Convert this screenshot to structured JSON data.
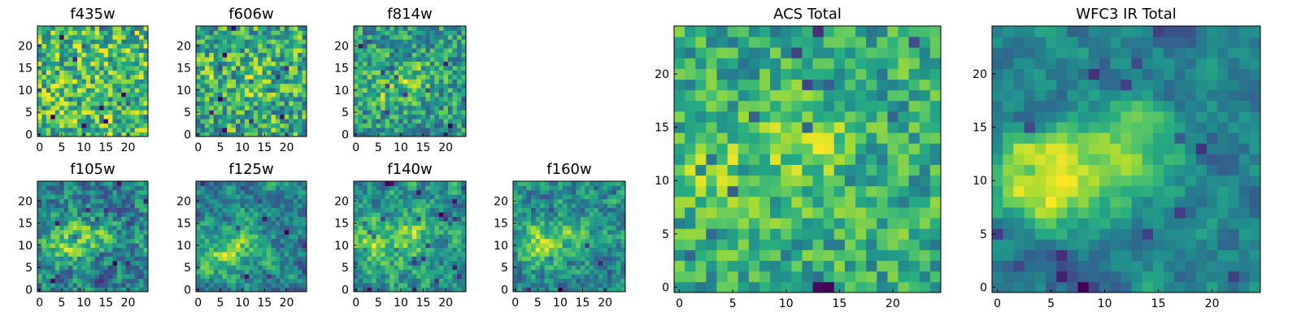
{
  "chart_data": [
    {
      "type": "heatmap",
      "title": "f435w",
      "colormap": "viridis",
      "n": 25,
      "xticks": [
        "0",
        "5",
        "10",
        "15",
        "20"
      ],
      "yticks": [
        "0",
        "5",
        "10",
        "15",
        "20"
      ],
      "hotspots": [],
      "base": 0.65,
      "noise": 0.42,
      "seed": 11,
      "smooth": 0.0
    },
    {
      "type": "heatmap",
      "title": "f606w",
      "colormap": "viridis",
      "n": 25,
      "xticks": [
        "0",
        "5",
        "10",
        "15",
        "20"
      ],
      "yticks": [
        "0",
        "5",
        "10",
        "15",
        "20"
      ],
      "hotspots": [
        [
          6,
          12,
          0.12
        ],
        [
          13,
          12,
          0.1
        ]
      ],
      "base": 0.62,
      "noise": 0.42,
      "seed": 23,
      "smooth": 0.1
    },
    {
      "type": "heatmap",
      "title": "f814w",
      "colormap": "viridis",
      "n": 25,
      "xticks": [
        "0",
        "5",
        "10",
        "15",
        "20"
      ],
      "yticks": [
        "0",
        "5",
        "10",
        "15",
        "20"
      ],
      "hotspots": [
        [
          5,
          10,
          0.28
        ],
        [
          13,
          12,
          0.3
        ]
      ],
      "base": 0.55,
      "noise": 0.4,
      "seed": 37,
      "smooth": 0.2
    },
    {
      "type": "heatmap",
      "title": "f105w",
      "colormap": "viridis",
      "n": 25,
      "xticks": [
        "0",
        "5",
        "10",
        "15",
        "20"
      ],
      "yticks": [
        "0",
        "5",
        "10",
        "15",
        "20"
      ],
      "hotspots": [
        [
          5,
          10,
          0.3
        ],
        [
          12,
          12,
          0.25
        ]
      ],
      "base": 0.55,
      "noise": 0.35,
      "seed": 41,
      "smooth": 0.45
    },
    {
      "type": "heatmap",
      "title": "f125w",
      "colormap": "viridis",
      "n": 25,
      "xticks": [
        "0",
        "5",
        "10",
        "15",
        "20"
      ],
      "yticks": [
        "0",
        "5",
        "10",
        "15",
        "20"
      ],
      "hotspots": [
        [
          5,
          8,
          0.33
        ],
        [
          12,
          10,
          0.25
        ]
      ],
      "base": 0.55,
      "noise": 0.32,
      "seed": 53,
      "smooth": 0.5
    },
    {
      "type": "heatmap",
      "title": "f140w",
      "colormap": "viridis",
      "n": 25,
      "xticks": [
        "0",
        "5",
        "10",
        "15",
        "20"
      ],
      "yticks": [
        "0",
        "5",
        "10",
        "15",
        "20"
      ],
      "hotspots": [
        [
          4,
          10,
          0.35
        ],
        [
          12,
          12,
          0.28
        ]
      ],
      "base": 0.55,
      "noise": 0.32,
      "seed": 67,
      "smooth": 0.5
    },
    {
      "type": "heatmap",
      "title": "f160w",
      "colormap": "viridis",
      "n": 25,
      "xticks": [
        "0",
        "5",
        "10",
        "15",
        "20"
      ],
      "yticks": [
        "0",
        "5",
        "10",
        "15",
        "20"
      ],
      "hotspots": [
        [
          5,
          10,
          0.38
        ],
        [
          12,
          12,
          0.25
        ]
      ],
      "base": 0.5,
      "noise": 0.32,
      "seed": 79,
      "smooth": 0.5
    },
    {
      "type": "heatmap",
      "title": "ACS Total",
      "colormap": "viridis",
      "n": 25,
      "xticks": [
        "0",
        "5",
        "10",
        "15",
        "20"
      ],
      "yticks": [
        "0",
        "5",
        "10",
        "15",
        "20"
      ],
      "hotspots": [
        [
          4,
          11,
          0.22
        ],
        [
          12,
          13,
          0.22
        ]
      ],
      "base": 0.6,
      "noise": 0.3,
      "seed": 97,
      "smooth": 0.25
    },
    {
      "type": "heatmap",
      "title": "WFC3 IR Total",
      "colormap": "viridis",
      "n": 25,
      "xticks": [
        "0",
        "5",
        "10",
        "15",
        "20"
      ],
      "yticks": [
        "0",
        "5",
        "10",
        "15",
        "20"
      ],
      "hotspots": [
        [
          4,
          10,
          0.4
        ],
        [
          12,
          12,
          0.3
        ]
      ],
      "base": 0.42,
      "noise": 0.2,
      "seed": 113,
      "smooth": 0.7
    }
  ]
}
